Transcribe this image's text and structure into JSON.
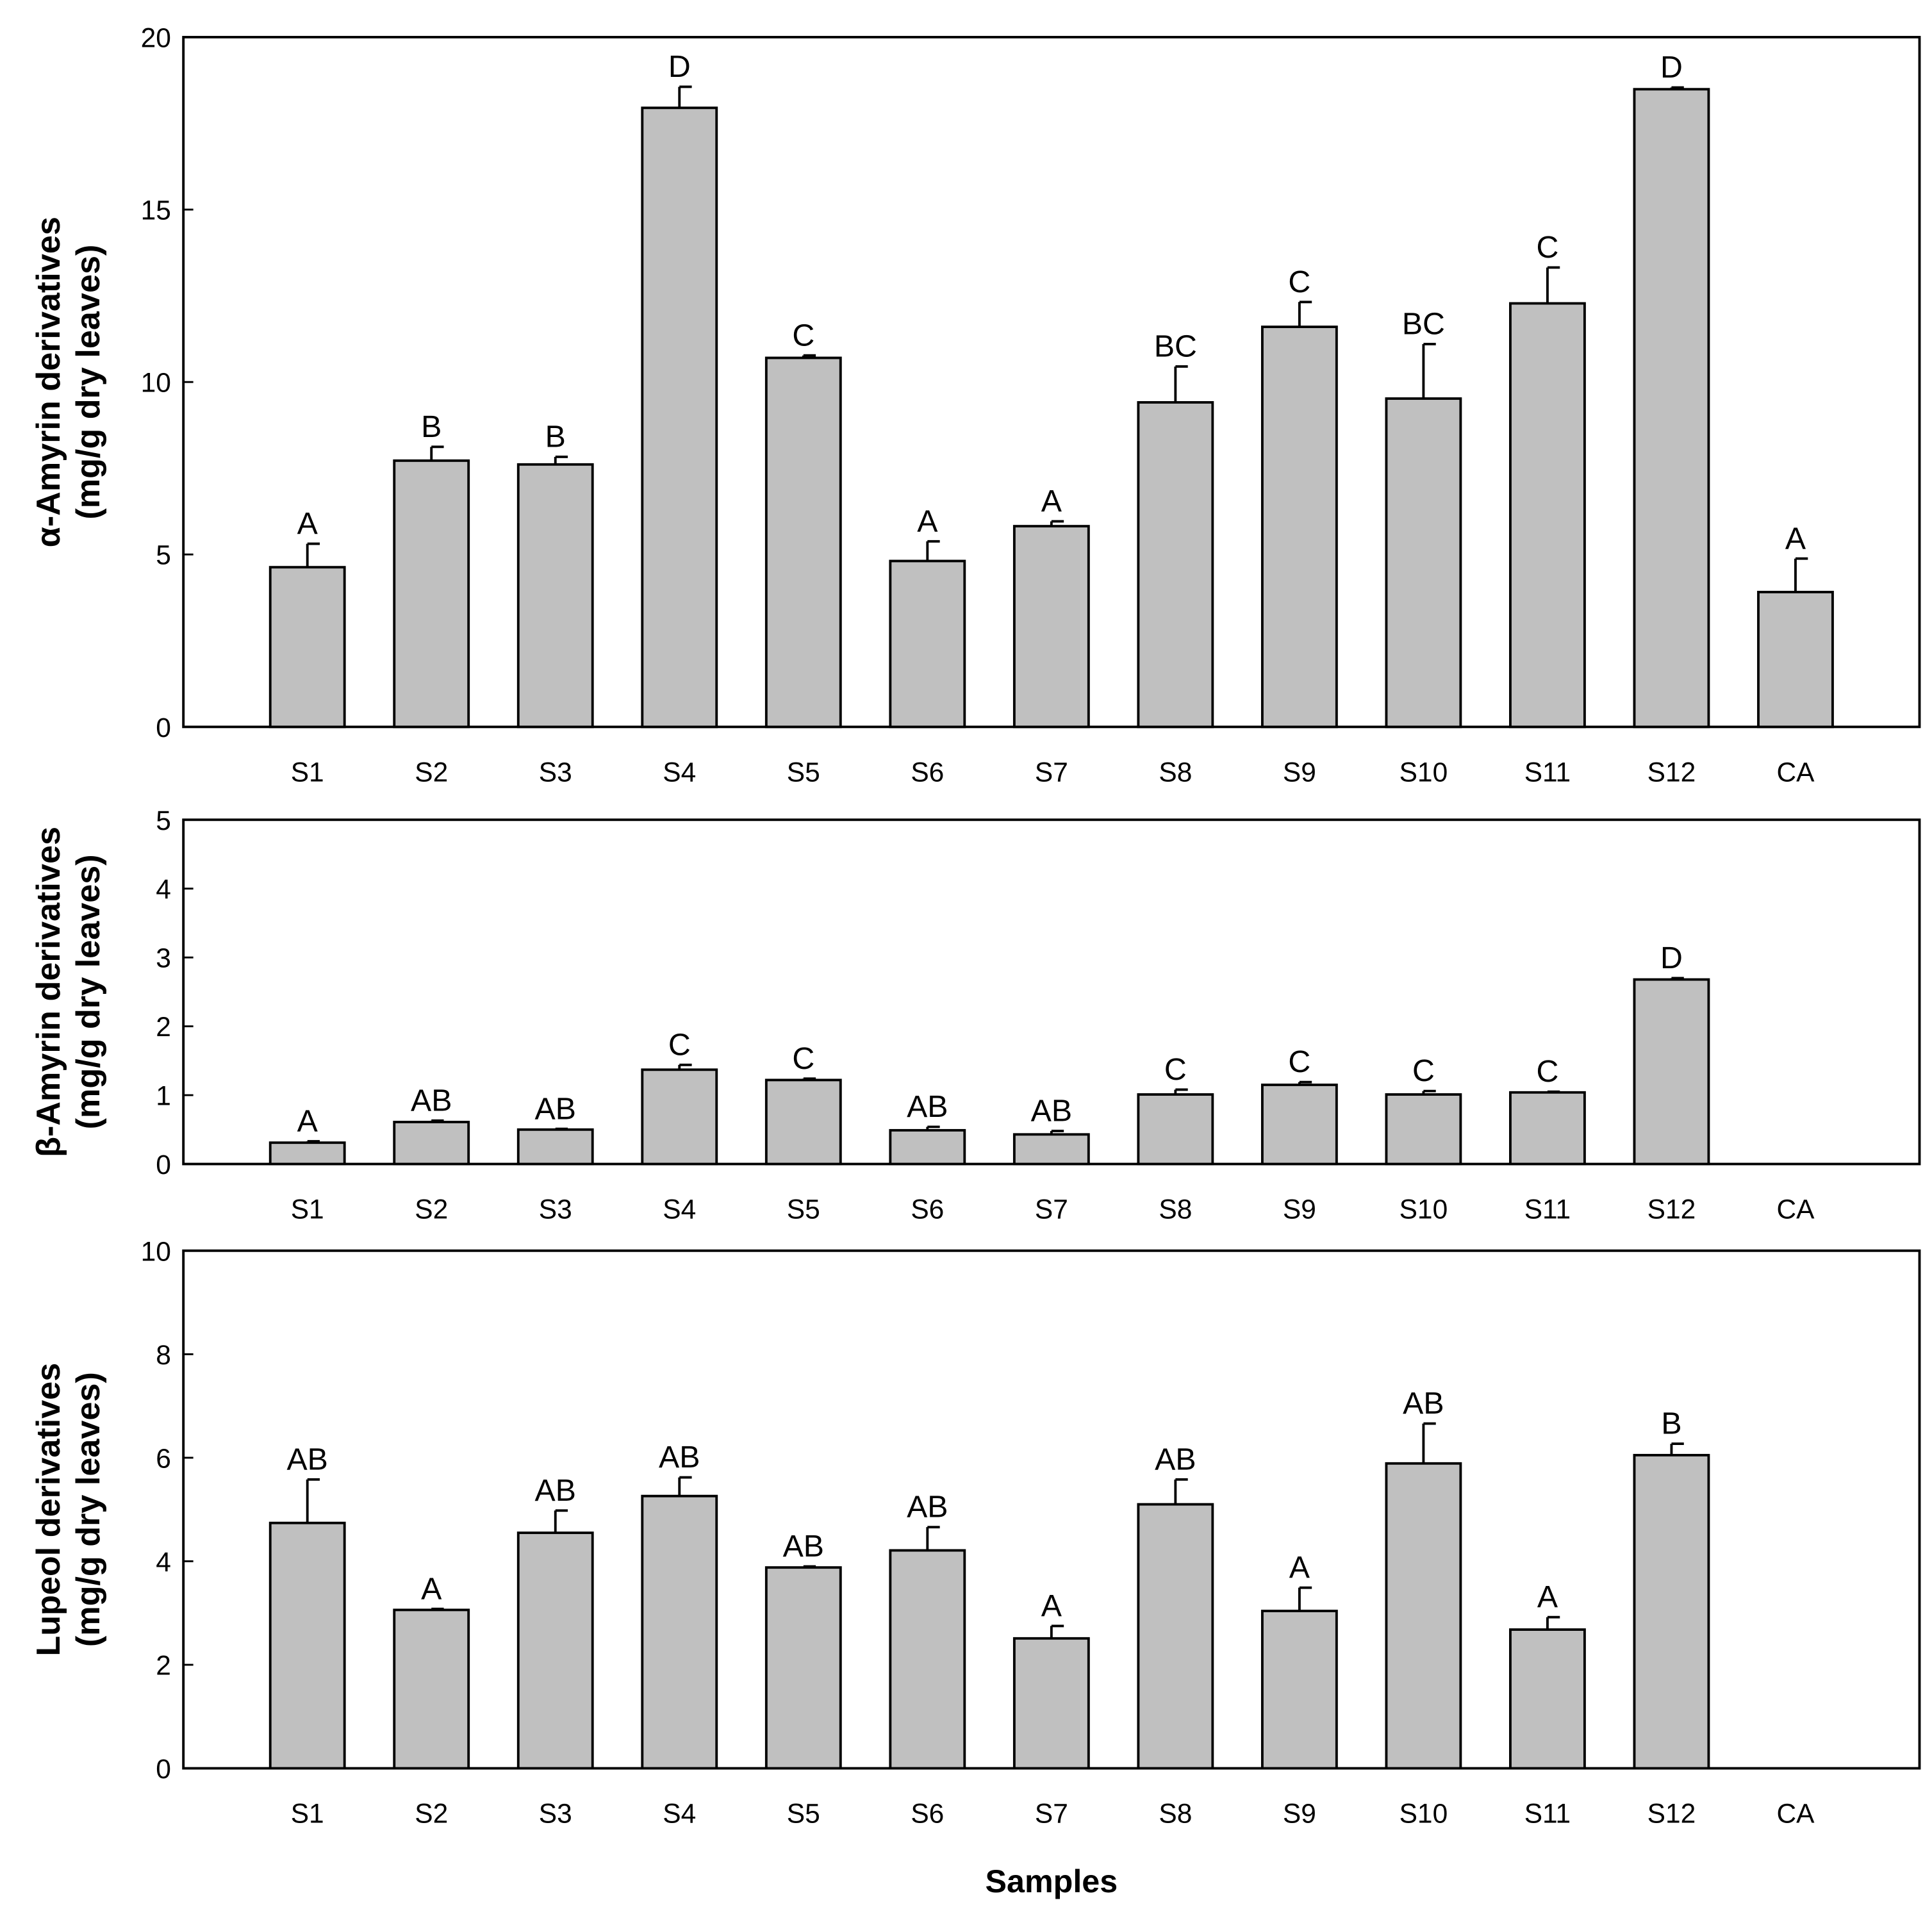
{
  "chart_data": [
    {
      "type": "bar",
      "ylabel": [
        "α-Amyrin derivatives",
        "(mg/g dry leaves)"
      ],
      "categories": [
        "S1",
        "S2",
        "S3",
        "S4",
        "S5",
        "S6",
        "S7",
        "S8",
        "S9",
        "S10",
        "S11",
        "S12",
        "CA"
      ],
      "values": [
        4.63,
        7.72,
        7.61,
        17.95,
        10.7,
        4.81,
        5.82,
        9.41,
        11.6,
        9.52,
        12.28,
        18.49,
        3.91
      ],
      "errors": [
        0.68,
        0.4,
        0.22,
        0.61,
        0.07,
        0.57,
        0.14,
        1.04,
        0.72,
        1.58,
        1.04,
        0.05,
        0.97
      ],
      "letters": [
        "A",
        "B",
        "B",
        "D",
        "C",
        "A",
        "A",
        "BC",
        "C",
        "BC",
        "C",
        "D",
        "A"
      ],
      "color": "#c0c0c0",
      "ylim": [
        0,
        20
      ],
      "yticks": [
        0,
        5,
        10,
        15,
        20
      ]
    },
    {
      "type": "bar",
      "ylabel": [
        "β-Amyrin derivatives",
        "(mg/g dry leaves)"
      ],
      "categories": [
        "S1",
        "S2",
        "S3",
        "S4",
        "S5",
        "S6",
        "S7",
        "S8",
        "S9",
        "S10",
        "S11",
        "S12",
        "CA"
      ],
      "values": [
        0.31,
        0.61,
        0.5,
        1.37,
        1.22,
        0.49,
        0.43,
        1.01,
        1.15,
        1.01,
        1.04,
        2.68,
        null
      ],
      "errors": [
        0.02,
        0.02,
        0.01,
        0.07,
        0.02,
        0.05,
        0.05,
        0.07,
        0.04,
        0.05,
        0.01,
        0.02,
        null
      ],
      "letters": [
        "A",
        "AB",
        "AB",
        "C",
        "C",
        "AB",
        "AB",
        "C",
        "C",
        "C",
        "C",
        "D",
        null
      ],
      "color": "#c0c0c0",
      "ylim": [
        0,
        5
      ],
      "yticks": [
        0,
        1,
        2,
        3,
        4,
        5
      ]
    },
    {
      "type": "bar",
      "ylabel": [
        "Lupeol derivatives",
        "(mg/g dry leaves)"
      ],
      "xlabel": "Samples",
      "categories": [
        "S1",
        "S2",
        "S3",
        "S4",
        "S5",
        "S6",
        "S7",
        "S8",
        "S9",
        "S10",
        "S11",
        "S12",
        "CA"
      ],
      "values": [
        4.74,
        3.06,
        4.55,
        5.26,
        3.88,
        4.21,
        2.51,
        5.1,
        3.04,
        5.89,
        2.68,
        6.05,
        null
      ],
      "errors": [
        0.84,
        0.02,
        0.43,
        0.36,
        0.02,
        0.45,
        0.24,
        0.48,
        0.45,
        0.77,
        0.24,
        0.22,
        null
      ],
      "letters": [
        "AB",
        "A",
        "AB",
        "AB",
        "AB",
        "AB",
        "A",
        "AB",
        "A",
        "AB",
        "A",
        "B",
        null
      ],
      "color": "#c0c0c0",
      "ylim": [
        0,
        10
      ],
      "yticks": [
        0,
        2,
        4,
        6,
        8,
        10
      ]
    }
  ]
}
